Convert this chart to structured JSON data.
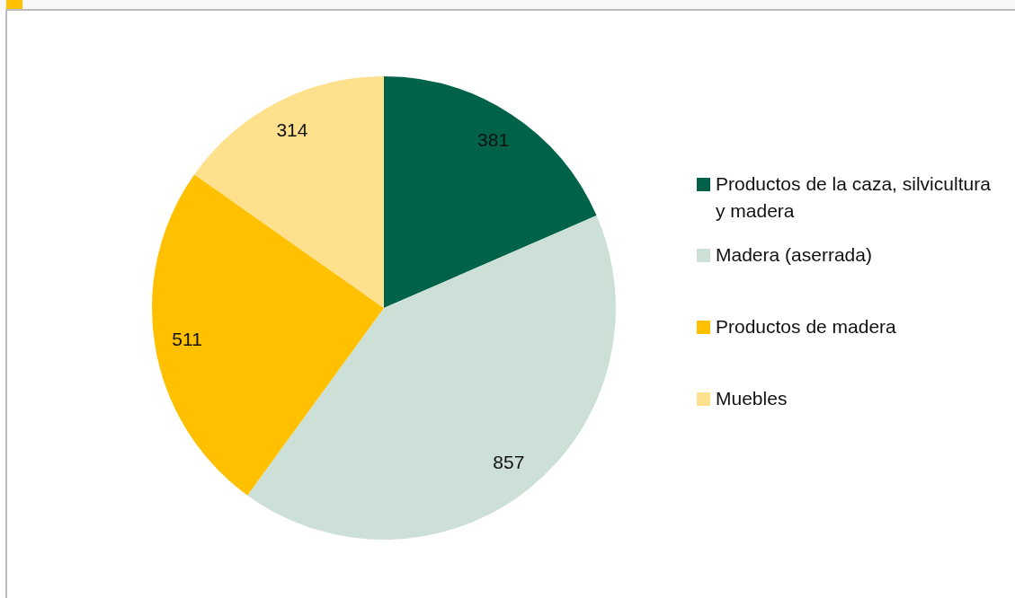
{
  "chart_data": {
    "type": "pie",
    "categories": [
      "Productos de la caza, silvicultura y madera",
      "Madera (aserrada)",
      "Productos de madera",
      "Muebles"
    ],
    "values": [
      381,
      857,
      511,
      314
    ],
    "colors": [
      "#006349",
      "#cce0d8",
      "#ffc000",
      "#ffe08c"
    ],
    "data_labels": true,
    "legend": "right"
  }
}
